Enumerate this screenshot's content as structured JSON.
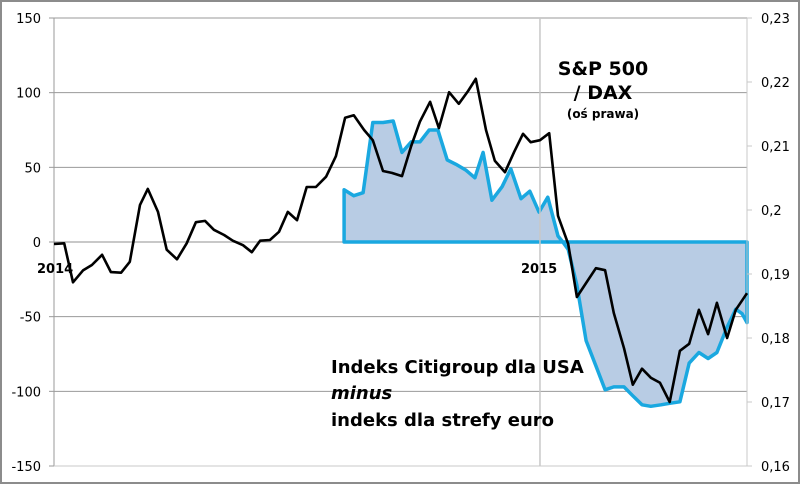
{
  "chart_data": {
    "type": "line",
    "title": "",
    "x_unit": "year",
    "xlim": [
      2014.0,
      2015.426
    ],
    "x_tick_labels": [
      "2014",
      "2015"
    ],
    "left_axis": {
      "ylim": [
        -150,
        150
      ],
      "ticks": [
        150,
        100,
        50,
        0,
        -50,
        -100,
        -150
      ],
      "tick_labels": [
        "150",
        "100",
        "50",
        "0",
        "-50",
        "-100",
        "-150"
      ]
    },
    "right_axis": {
      "ylim": [
        0.16,
        0.23
      ],
      "ticks": [
        0.23,
        0.22,
        0.21,
        0.2,
        0.19,
        0.18,
        0.17,
        0.16
      ],
      "tick_labels": [
        "0,23",
        "0,22",
        "0,21",
        "0,2",
        "0,19",
        "0,18",
        "0,17",
        "0,16"
      ]
    },
    "grid": "horizontal",
    "annotations": {
      "sp_dax_line1": "S&P 500",
      "sp_dax_line2": "/ DAX",
      "sp_dax_line3": "(oś prawa)",
      "citi_line1": "Indeks Citigroup dla USA",
      "citi_line2": "minus",
      "citi_line3": "indeks dla strefy euro"
    },
    "series": [
      {
        "name": "S&P 500 / DAX",
        "axis": "right",
        "kind": "line",
        "color": "#000000",
        "x": [
          2014.0,
          2014.021,
          2014.039,
          2014.06,
          2014.078,
          2014.099,
          2014.117,
          2014.138,
          2014.156,
          2014.177,
          2014.193,
          2014.214,
          2014.232,
          2014.253,
          2014.273,
          2014.292,
          2014.311,
          2014.329,
          2014.35,
          2014.368,
          2014.389,
          2014.407,
          2014.424,
          2014.444,
          2014.463,
          2014.481,
          2014.5,
          2014.52,
          2014.539,
          2014.56,
          2014.58,
          2014.599,
          2014.617,
          2014.638,
          2014.656,
          2014.677,
          2014.695,
          2014.716,
          2014.735,
          2014.753,
          2014.774,
          2014.792,
          2014.813,
          2014.833,
          2014.852,
          2014.868,
          2014.889,
          2014.907,
          2014.928,
          2014.947,
          2014.965,
          2014.981,
          2015.0,
          2015.019,
          2015.037,
          2015.058,
          2015.076,
          2015.095,
          2015.115,
          2015.134,
          2015.152,
          2015.173,
          2015.191,
          2015.21,
          2015.228,
          2015.247,
          2015.267,
          2015.288,
          2015.307,
          2015.327,
          2015.346,
          2015.364,
          2015.385,
          2015.403,
          2015.426
        ],
        "y": [
          0.1947,
          0.1948,
          0.1887,
          0.1906,
          0.1914,
          0.193,
          0.1903,
          0.1902,
          0.1919,
          0.2008,
          0.2033,
          0.1997,
          0.1938,
          0.1923,
          0.1948,
          0.1981,
          0.1983,
          0.1969,
          0.1961,
          0.1952,
          0.1945,
          0.1934,
          0.1952,
          0.1953,
          0.1966,
          0.1997,
          0.1984,
          0.2036,
          0.2036,
          0.2052,
          0.2084,
          0.2144,
          0.2148,
          0.2125,
          0.2109,
          0.2061,
          0.2058,
          0.2053,
          0.21,
          0.2138,
          0.2169,
          0.2128,
          0.2184,
          0.2166,
          0.2186,
          0.2205,
          0.2125,
          0.2077,
          0.2059,
          0.2091,
          0.2119,
          0.2106,
          0.2109,
          0.212,
          0.1991,
          0.1947,
          0.1864,
          0.1886,
          0.1909,
          0.1906,
          0.1839,
          0.1784,
          0.1727,
          0.1752,
          0.1738,
          0.173,
          0.17,
          0.178,
          0.1791,
          0.1844,
          0.1806,
          0.1855,
          0.18,
          0.1844,
          0.187
        ]
      },
      {
        "name": "Indeks Citigroup dla USA minus indeks dla strefy euro",
        "axis": "left",
        "kind": "area",
        "color": "#1aa8e0",
        "fill": "#b8cce4",
        "x": [
          2014.597,
          2014.617,
          2014.636,
          2014.656,
          2014.677,
          2014.698,
          2014.716,
          2014.735,
          2014.753,
          2014.772,
          2014.79,
          2014.809,
          2014.827,
          2014.848,
          2014.866,
          2014.883,
          2014.901,
          2014.922,
          2014.94,
          2014.961,
          2014.979,
          2014.998,
          2015.016,
          2015.037,
          2015.047,
          2015.058,
          2015.076,
          2015.095,
          2015.115,
          2015.134,
          2015.152,
          2015.173,
          2015.191,
          2015.21,
          2015.228,
          2015.249,
          2015.267,
          2015.288,
          2015.307,
          2015.327,
          2015.346,
          2015.364,
          2015.385,
          2015.403,
          2015.416,
          2015.426
        ],
        "y": [
          35,
          31,
          33,
          80,
          80,
          81,
          60,
          67,
          67,
          75,
          75,
          55,
          52,
          48,
          43,
          60,
          28,
          37,
          49,
          29,
          34,
          20,
          30,
          4,
          0,
          -5,
          -29,
          -66,
          -83,
          -99,
          -97,
          -97,
          -103,
          -109,
          -110,
          -109,
          -108,
          -107,
          -81,
          -74,
          -78,
          -74,
          -57,
          -45,
          -48,
          -54
        ]
      }
    ]
  }
}
